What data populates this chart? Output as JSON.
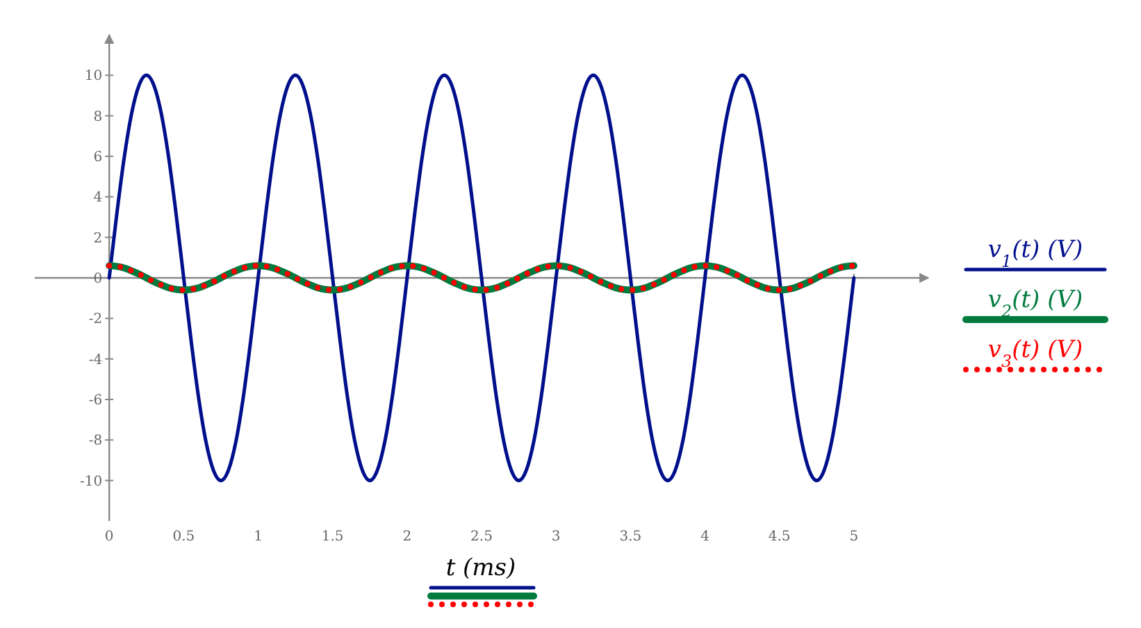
{
  "chart_data": {
    "type": "line",
    "xlabel": "t (ms)",
    "legend": "right",
    "x": [
      0,
      0.05,
      0.1,
      0.15,
      0.2,
      0.25,
      0.3,
      0.35,
      0.4,
      0.45,
      0.5,
      0.55,
      0.6,
      0.65,
      0.7,
      0.75,
      0.8,
      0.85,
      0.9,
      0.95,
      1,
      1.05,
      1.1,
      1.15,
      1.2,
      1.25,
      1.3,
      1.35,
      1.4,
      1.45,
      1.5,
      1.55,
      1.6,
      1.65,
      1.7,
      1.75,
      1.8,
      1.85,
      1.9,
      1.95,
      2,
      2.05,
      2.1,
      2.15,
      2.2,
      2.25,
      2.3,
      2.35,
      2.4,
      2.45,
      2.5,
      2.55,
      2.6,
      2.65,
      2.7,
      2.75,
      2.8,
      2.85,
      2.9,
      2.95,
      3,
      3.05,
      3.1,
      3.15,
      3.2,
      3.25,
      3.3,
      3.35,
      3.4,
      3.45,
      3.5,
      3.55,
      3.6,
      3.65,
      3.7,
      3.75,
      3.8,
      3.85,
      3.9,
      3.95,
      4,
      4.05,
      4.1,
      4.15,
      4.2,
      4.25,
      4.3,
      4.35,
      4.4,
      4.45,
      4.5,
      4.55,
      4.6,
      4.65,
      4.7,
      4.75,
      4.8,
      4.85,
      4.9,
      4.95,
      5
    ],
    "xlim": [
      -0.5,
      5.5
    ],
    "xticks": [
      0,
      0.5,
      1,
      1.5,
      2,
      2.5,
      3,
      3.5,
      4,
      4.5,
      5
    ],
    "ylim": [
      -12,
      12
    ],
    "yticks": [
      -10,
      -8,
      -6,
      -4,
      -2,
      0,
      2,
      4,
      6,
      8,
      10
    ],
    "series": [
      {
        "name": "v$_{1}$(t)  (V)",
        "color": "#000f8c",
        "line_style": "solid",
        "values": [
          0,
          3.1,
          5.9,
          8.1,
          9.5,
          10,
          9.5,
          8.1,
          5.9,
          3.1,
          0,
          -3.1,
          -5.9,
          -8.1,
          -9.5,
          -10,
          -9.5,
          -8.1,
          -5.9,
          -3.1,
          0,
          3.1,
          5.9,
          8.1,
          9.5,
          10,
          9.5,
          8.1,
          5.9,
          3.1,
          0,
          -3.1,
          -5.9,
          -8.1,
          -9.5,
          -10,
          -9.5,
          -8.1,
          -5.9,
          -3.1,
          0,
          3.1,
          5.9,
          8.1,
          9.5,
          10,
          9.5,
          8.1,
          5.9,
          3.1,
          0,
          -3.1,
          -5.9,
          -8.1,
          -9.5,
          -10,
          -9.5,
          -8.1,
          -5.9,
          -3.1,
          0,
          3.1,
          5.9,
          8.1,
          9.5,
          10,
          9.5,
          8.1,
          5.9,
          3.1,
          0,
          -3.1,
          -5.9,
          -8.1,
          -9.5,
          -10,
          -9.5,
          -8.1,
          -5.9,
          -3.1,
          0,
          3.1,
          5.9,
          8.1,
          9.5,
          10,
          9.5,
          8.1,
          5.9,
          3.1,
          0,
          -3.1,
          -5.9,
          -8.1,
          -9.5,
          -10,
          -9.5,
          -8.1,
          -5.9,
          -3.1,
          0
        ]
      },
      {
        "name": "v$_{2}$(t)  (V)",
        "color": "#007a3d",
        "line_style": "solid",
        "values": [
          0.6,
          0.57,
          0.49,
          0.35,
          0.19,
          0,
          -0.19,
          -0.35,
          -0.49,
          -0.57,
          -0.6,
          -0.57,
          -0.49,
          -0.35,
          -0.19,
          0,
          0.19,
          0.35,
          0.49,
          0.57,
          0.6,
          0.57,
          0.49,
          0.35,
          0.19,
          0,
          -0.19,
          -0.35,
          -0.49,
          -0.57,
          -0.6,
          -0.57,
          -0.49,
          -0.35,
          -0.19,
          0,
          0.19,
          0.35,
          0.49,
          0.57,
          0.6,
          0.57,
          0.49,
          0.35,
          0.19,
          0,
          -0.19,
          -0.35,
          -0.49,
          -0.57,
          -0.6,
          -0.57,
          -0.49,
          -0.35,
          -0.19,
          0,
          0.19,
          0.35,
          0.49,
          0.57,
          0.6,
          0.57,
          0.49,
          0.35,
          0.19,
          0,
          -0.19,
          -0.35,
          -0.49,
          -0.57,
          -0.6,
          -0.57,
          -0.49,
          -0.35,
          -0.19,
          0,
          0.19,
          0.35,
          0.49,
          0.57,
          0.6,
          0.57,
          0.49,
          0.35,
          0.19,
          0,
          -0.19,
          -0.35,
          -0.49,
          -0.57,
          -0.6,
          -0.57,
          -0.49,
          -0.35,
          -0.19,
          0,
          0.19,
          0.35,
          0.49,
          0.57,
          0.6
        ]
      },
      {
        "name": "v$_{3}$(t)  (V)",
        "color": "#ff0000",
        "line_style": "dotted",
        "values": [
          0.6,
          0.57,
          0.49,
          0.35,
          0.19,
          0,
          -0.19,
          -0.35,
          -0.49,
          -0.57,
          -0.6,
          -0.57,
          -0.49,
          -0.35,
          -0.19,
          0,
          0.19,
          0.35,
          0.49,
          0.57,
          0.6,
          0.57,
          0.49,
          0.35,
          0.19,
          0,
          -0.19,
          -0.35,
          -0.49,
          -0.57,
          -0.6,
          -0.57,
          -0.49,
          -0.35,
          -0.19,
          0,
          0.19,
          0.35,
          0.49,
          0.57,
          0.6,
          0.57,
          0.49,
          0.35,
          0.19,
          0,
          -0.19,
          -0.35,
          -0.49,
          -0.57,
          -0.6,
          -0.57,
          -0.49,
          -0.35,
          -0.19,
          0,
          0.19,
          0.35,
          0.49,
          0.57,
          0.6,
          0.57,
          0.49,
          0.35,
          0.19,
          0,
          -0.19,
          -0.35,
          -0.49,
          -0.57,
          -0.6,
          -0.57,
          -0.49,
          -0.35,
          -0.19,
          0,
          0.19,
          0.35,
          0.49,
          0.57,
          0.6,
          0.57,
          0.49,
          0.35,
          0.19,
          0,
          -0.19,
          -0.35,
          -0.49,
          -0.57,
          -0.6,
          -0.57,
          -0.49,
          -0.35,
          -0.19,
          0,
          0.19,
          0.35,
          0.49,
          0.57,
          0.6
        ]
      }
    ]
  }
}
